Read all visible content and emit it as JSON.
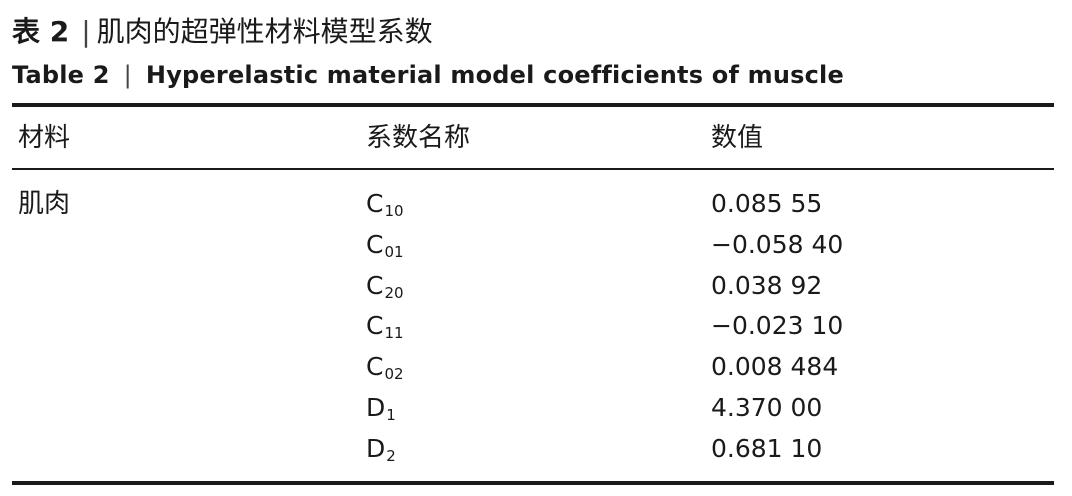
{
  "caption": {
    "cn_label": "表 2",
    "cn_sep": "|",
    "cn_title": "肌肉的超弹性材料模型系数",
    "en_label": "Table 2",
    "en_sep": "|",
    "en_title": "Hyperelastic material model coefficients of muscle"
  },
  "table": {
    "headers": [
      "材料",
      "系数名称",
      "数值"
    ],
    "material": "肌肉",
    "rows": [
      {
        "symbol": "C",
        "sub": "10",
        "value": "0.085 55"
      },
      {
        "symbol": "C",
        "sub": "01",
        "value": "−0.058 40"
      },
      {
        "symbol": "C",
        "sub": "20",
        "value": "0.038 92"
      },
      {
        "symbol": "C",
        "sub": "11",
        "value": "−0.023 10"
      },
      {
        "symbol": "C",
        "sub": "02",
        "value": "0.008 484"
      },
      {
        "symbol": "D",
        "sub": "1",
        "value": "4.370 00"
      },
      {
        "symbol": "D",
        "sub": "2",
        "value": "0.681 10"
      }
    ]
  }
}
